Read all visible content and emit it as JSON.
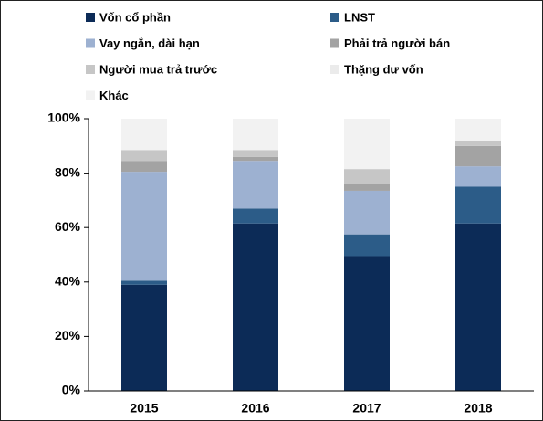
{
  "chart_data": {
    "type": "stacked_bar",
    "categories": [
      "2015",
      "2016",
      "2017",
      "2018"
    ],
    "series": [
      {
        "name": "Vốn cổ phần",
        "color": "#0c2b57",
        "values": [
          39,
          61.5,
          49.5,
          61.5
        ]
      },
      {
        "name": "LNST",
        "color": "#2c5c88",
        "values": [
          1.5,
          5.5,
          8,
          13.5
        ]
      },
      {
        "name": "Vay ngắn, dài hạn",
        "color": "#9db1d1",
        "values": [
          40,
          17.5,
          16,
          7.5
        ]
      },
      {
        "name": "Phải trả người bán",
        "color": "#a3a3a3",
        "values": [
          4,
          1.5,
          2.5,
          7.5
        ]
      },
      {
        "name": "Người mua trả trước",
        "color": "#c6c6c6",
        "values": [
          4,
          2.5,
          5.5,
          2
        ]
      },
      {
        "name": "Thặng dư vốn",
        "color": "#ebebeb",
        "values": [
          0,
          0,
          0,
          0
        ]
      },
      {
        "name": "Khác",
        "color": "#f2f2f2",
        "values": [
          11.5,
          11.5,
          18.5,
          8
        ]
      }
    ],
    "ylim": [
      0,
      100
    ],
    "yticks": [
      {
        "value": 0,
        "label": "0%"
      },
      {
        "value": 20,
        "label": "20%"
      },
      {
        "value": 40,
        "label": "40%"
      },
      {
        "value": 60,
        "label": "60%"
      },
      {
        "value": 80,
        "label": "80%"
      },
      {
        "value": 100,
        "label": "100%"
      }
    ],
    "legend": "top"
  }
}
